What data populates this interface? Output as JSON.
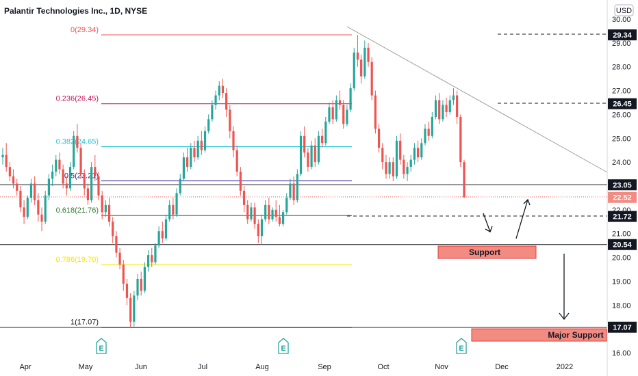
{
  "chart_data": {
    "type": "candlestick",
    "title": "Palantir Technologies Inc., 1D, NYSE",
    "currency": "USD",
    "ylim": [
      15.8,
      30.35
    ],
    "y_ticks": [
      16.0,
      17.0,
      18.0,
      19.0,
      20.0,
      21.0,
      22.0,
      23.0,
      24.0,
      25.0,
      26.0,
      27.0,
      28.0,
      29.0,
      30.0
    ],
    "x_ticks": [
      "Apr",
      "May",
      "Jun",
      "Jul",
      "Aug",
      "Sep",
      "Oct",
      "Nov",
      "Dec",
      "2022"
    ],
    "fib_levels": [
      {
        "label": "0(29.34)",
        "value": 29.34,
        "color": "#ef5350"
      },
      {
        "label": "0.236(26.45)",
        "value": 26.45,
        "color": "#c2185b"
      },
      {
        "label": "0.382(24.65)",
        "value": 24.65,
        "color": "#26c6da"
      },
      {
        "label": "0.5(23.21)",
        "value": 23.21,
        "color": "#311b92"
      },
      {
        "label": "0.618(21.76)",
        "value": 21.76,
        "color": "#2e7d32"
      },
      {
        "label": "0.786(19.70)",
        "value": 19.7,
        "color": "#f9e600"
      },
      {
        "label": "1(17.07)",
        "value": 17.07,
        "color": "#131722"
      }
    ],
    "price_tags": [
      {
        "label": "29.34",
        "value": 29.34,
        "style": "dark"
      },
      {
        "label": "26.45",
        "value": 26.45,
        "style": "dark"
      },
      {
        "label": "23.05",
        "value": 23.05,
        "style": "dark"
      },
      {
        "label": "22.52",
        "value": 22.52,
        "style": "red"
      },
      {
        "label": "21.72",
        "value": 21.72,
        "style": "dark"
      },
      {
        "label": "20.54",
        "value": 20.54,
        "style": "dark"
      },
      {
        "label": "17.07",
        "value": 17.07,
        "style": "dark"
      }
    ],
    "horizontal_lines": [
      23.05,
      20.54,
      17.07
    ],
    "last_price": 22.52,
    "annotations": [
      "Support",
      "Major Support"
    ],
    "earnings_markers": [
      "May",
      "Aug",
      "Nov"
    ],
    "earnings_glyph": "E",
    "series": [
      {
        "name": "",
        "candles": [
          [
            24.2,
            24.6,
            23.9,
            24.3
          ],
          [
            24.3,
            24.8,
            23.6,
            23.8
          ],
          [
            23.8,
            24.0,
            23.2,
            23.4
          ],
          [
            23.4,
            23.7,
            22.9,
            23.1
          ],
          [
            23.1,
            23.3,
            22.6,
            22.8
          ],
          [
            22.8,
            23.0,
            21.9,
            22.1
          ],
          [
            22.1,
            22.4,
            21.4,
            21.7
          ],
          [
            21.7,
            22.6,
            21.6,
            22.5
          ],
          [
            22.5,
            23.3,
            22.3,
            23.1
          ],
          [
            23.1,
            23.4,
            22.2,
            22.4
          ],
          [
            22.4,
            22.7,
            21.5,
            21.8
          ],
          [
            21.8,
            22.1,
            21.1,
            21.5
          ],
          [
            21.5,
            22.8,
            21.4,
            22.6
          ],
          [
            22.6,
            23.5,
            22.4,
            23.3
          ],
          [
            23.3,
            23.9,
            23.0,
            23.6
          ],
          [
            23.6,
            24.3,
            23.4,
            24.1
          ],
          [
            24.1,
            24.4,
            23.5,
            23.7
          ],
          [
            23.7,
            23.9,
            22.9,
            23.1
          ],
          [
            23.1,
            23.4,
            22.6,
            22.9
          ],
          [
            22.9,
            24.0,
            22.8,
            23.8
          ],
          [
            23.8,
            25.3,
            23.7,
            25.1
          ],
          [
            25.1,
            25.6,
            24.4,
            24.6
          ],
          [
            24.6,
            24.8,
            23.3,
            23.5
          ],
          [
            23.5,
            23.7,
            22.6,
            22.9
          ],
          [
            22.9,
            23.1,
            22.2,
            22.4
          ],
          [
            22.4,
            24.0,
            22.3,
            23.8
          ],
          [
            23.8,
            24.3,
            23.2,
            23.4
          ],
          [
            23.4,
            23.6,
            22.4,
            22.6
          ],
          [
            22.6,
            22.8,
            21.6,
            21.9
          ],
          [
            21.9,
            22.4,
            21.7,
            22.2
          ],
          [
            22.2,
            22.5,
            21.3,
            21.5
          ],
          [
            21.5,
            21.7,
            20.6,
            20.9
          ],
          [
            20.9,
            21.1,
            20.0,
            20.2
          ],
          [
            20.2,
            20.4,
            19.5,
            19.7
          ],
          [
            19.7,
            19.9,
            18.6,
            18.9
          ],
          [
            18.9,
            19.1,
            18.0,
            18.3
          ],
          [
            18.3,
            18.5,
            17.07,
            17.3
          ],
          [
            17.3,
            18.6,
            17.1,
            18.4
          ],
          [
            18.4,
            19.3,
            18.2,
            19.1
          ],
          [
            19.1,
            19.4,
            18.4,
            18.6
          ],
          [
            18.6,
            19.8,
            18.5,
            19.6
          ],
          [
            19.6,
            20.3,
            19.4,
            20.1
          ],
          [
            20.1,
            20.4,
            19.6,
            19.8
          ],
          [
            19.8,
            20.6,
            19.7,
            20.5
          ],
          [
            20.5,
            21.3,
            20.4,
            21.1
          ],
          [
            21.1,
            21.5,
            20.6,
            20.8
          ],
          [
            20.8,
            21.8,
            20.7,
            21.6
          ],
          [
            21.6,
            22.4,
            21.5,
            22.2
          ],
          [
            22.2,
            22.5,
            21.6,
            21.8
          ],
          [
            21.8,
            22.9,
            21.7,
            22.7
          ],
          [
            22.7,
            23.5,
            22.6,
            23.3
          ],
          [
            23.3,
            24.4,
            23.2,
            24.2
          ],
          [
            24.2,
            24.6,
            23.6,
            23.8
          ],
          [
            23.8,
            24.8,
            23.7,
            24.6
          ],
          [
            24.6,
            24.9,
            24.0,
            24.2
          ],
          [
            24.2,
            25.1,
            24.1,
            24.9
          ],
          [
            24.9,
            25.3,
            24.3,
            24.5
          ],
          [
            24.5,
            25.5,
            24.4,
            25.3
          ],
          [
            25.3,
            26.0,
            25.2,
            25.8
          ],
          [
            25.8,
            26.6,
            25.7,
            26.4
          ],
          [
            26.4,
            27.0,
            26.2,
            26.8
          ],
          [
            26.8,
            27.4,
            26.6,
            27.2
          ],
          [
            27.2,
            27.5,
            26.7,
            26.9
          ],
          [
            26.9,
            27.1,
            25.9,
            26.2
          ],
          [
            26.2,
            26.4,
            25.0,
            25.3
          ],
          [
            25.3,
            25.5,
            24.2,
            24.5
          ],
          [
            24.5,
            24.7,
            23.4,
            23.6
          ],
          [
            23.6,
            23.8,
            22.6,
            22.8
          ],
          [
            22.8,
            23.0,
            21.9,
            22.2
          ],
          [
            22.2,
            22.4,
            21.4,
            21.6
          ],
          [
            21.6,
            22.3,
            21.5,
            22.1
          ],
          [
            22.1,
            22.3,
            21.2,
            21.4
          ],
          [
            21.4,
            21.6,
            20.6,
            20.9
          ],
          [
            20.9,
            21.8,
            20.54,
            21.6
          ],
          [
            21.6,
            22.4,
            21.5,
            22.2
          ],
          [
            22.2,
            22.5,
            21.4,
            21.6
          ],
          [
            21.6,
            22.1,
            21.5,
            22.0
          ],
          [
            22.0,
            22.4,
            21.5,
            21.7
          ],
          [
            21.7,
            22.2,
            21.3,
            21.4
          ],
          [
            21.4,
            22.0,
            21.3,
            21.9
          ],
          [
            21.9,
            22.7,
            21.8,
            22.5
          ],
          [
            22.5,
            23.3,
            22.4,
            23.1
          ],
          [
            23.1,
            23.4,
            22.2,
            22.4
          ],
          [
            22.4,
            23.7,
            22.3,
            23.5
          ],
          [
            23.5,
            25.3,
            23.4,
            25.1
          ],
          [
            25.1,
            25.5,
            24.2,
            24.4
          ],
          [
            24.4,
            24.6,
            23.6,
            23.8
          ],
          [
            23.8,
            24.9,
            23.7,
            24.7
          ],
          [
            24.7,
            25.0,
            23.8,
            24.0
          ],
          [
            24.0,
            25.3,
            23.9,
            25.1
          ],
          [
            25.1,
            25.4,
            24.6,
            24.8
          ],
          [
            24.8,
            25.9,
            24.7,
            25.7
          ],
          [
            25.7,
            26.5,
            25.6,
            26.3
          ],
          [
            26.3,
            26.6,
            25.6,
            25.8
          ],
          [
            25.8,
            26.8,
            25.7,
            26.6
          ],
          [
            26.6,
            27.0,
            26.2,
            26.4
          ],
          [
            26.4,
            26.6,
            25.4,
            25.6
          ],
          [
            25.6,
            26.4,
            25.5,
            26.2
          ],
          [
            26.2,
            27.3,
            26.1,
            27.1
          ],
          [
            27.1,
            28.8,
            27.0,
            28.6
          ],
          [
            28.6,
            29.34,
            28.0,
            28.3
          ],
          [
            28.3,
            28.5,
            27.3,
            27.6
          ],
          [
            27.6,
            29.1,
            27.5,
            28.8
          ],
          [
            28.8,
            29.0,
            28.0,
            28.2
          ],
          [
            28.2,
            28.4,
            26.6,
            26.8
          ],
          [
            26.8,
            27.0,
            25.2,
            25.4
          ],
          [
            25.4,
            25.6,
            24.4,
            24.6
          ],
          [
            24.6,
            24.8,
            23.7,
            24.0
          ],
          [
            24.0,
            24.3,
            23.3,
            23.5
          ],
          [
            23.5,
            24.2,
            23.3,
            24.0
          ],
          [
            24.0,
            24.2,
            23.2,
            23.4
          ],
          [
            23.4,
            25.1,
            23.3,
            24.9
          ],
          [
            24.9,
            25.2,
            23.9,
            24.1
          ],
          [
            24.1,
            24.3,
            23.3,
            23.5
          ],
          [
            23.5,
            24.0,
            23.2,
            23.8
          ],
          [
            23.8,
            24.3,
            23.6,
            24.1
          ],
          [
            24.1,
            24.8,
            23.9,
            24.6
          ],
          [
            24.6,
            24.9,
            24.0,
            24.2
          ],
          [
            24.2,
            25.0,
            24.1,
            24.8
          ],
          [
            24.8,
            25.6,
            24.7,
            25.4
          ],
          [
            25.4,
            25.7,
            24.9,
            25.1
          ],
          [
            25.1,
            26.1,
            25.0,
            25.9
          ],
          [
            25.9,
            26.8,
            25.8,
            26.6
          ],
          [
            26.6,
            26.9,
            25.6,
            25.8
          ],
          [
            25.8,
            26.6,
            25.7,
            26.4
          ],
          [
            26.4,
            26.7,
            25.9,
            26.1
          ],
          [
            26.1,
            26.8,
            26.0,
            26.6
          ],
          [
            26.6,
            27.1,
            26.4,
            26.8
          ],
          [
            26.8,
            27.0,
            25.6,
            25.9
          ],
          [
            25.9,
            26.0,
            23.8,
            24.0
          ],
          [
            24.0,
            24.1,
            22.5,
            22.52
          ]
        ]
      }
    ]
  }
}
